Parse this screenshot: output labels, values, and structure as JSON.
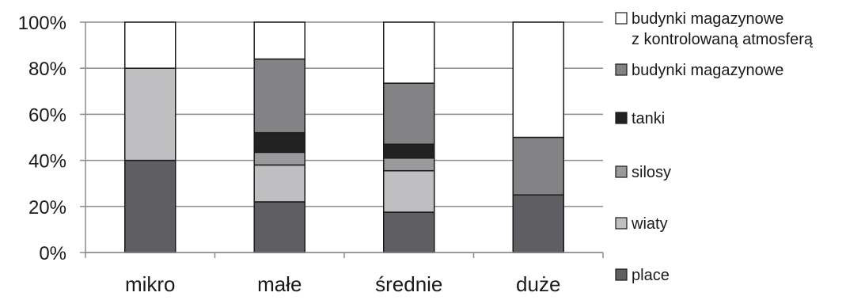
{
  "chart_data": {
    "type": "bar",
    "stacked": true,
    "percent": true,
    "categories": [
      "mikro",
      "małe",
      "średnie",
      "duże"
    ],
    "series": [
      {
        "name": "place",
        "color": "#5f5f63",
        "values": [
          40,
          22,
          17.5,
          25
        ]
      },
      {
        "name": "wiaty",
        "color": "#bfbfc1",
        "values": [
          40,
          16,
          18,
          0
        ]
      },
      {
        "name": "silosy",
        "color": "#9a9a9c",
        "values": [
          0,
          5.5,
          5.5,
          0
        ]
      },
      {
        "name": "tanki",
        "color": "#222222",
        "values": [
          0,
          8.5,
          6,
          0
        ]
      },
      {
        "name": "budynki magazynowe",
        "color": "#838385",
        "values": [
          0,
          32,
          26.5,
          25
        ]
      },
      {
        "name": "budynki magazynowe z kontrolowaną atmosferą",
        "color": "#ffffff",
        "values": [
          20,
          16,
          26.5,
          50
        ]
      }
    ],
    "legend": [
      {
        "lines": [
          "budynki magazynowe",
          "z kontrolowaną atmosferą"
        ],
        "color": "#ffffff"
      },
      {
        "lines": [
          "budynki magazynowe"
        ],
        "color": "#838385"
      },
      {
        "lines": [
          "tanki"
        ],
        "color": "#222222"
      },
      {
        "lines": [
          "silosy"
        ],
        "color": "#9a9a9c"
      },
      {
        "lines": [
          "wiaty"
        ],
        "color": "#bfbfc1"
      },
      {
        "lines": [
          "place"
        ],
        "color": "#5f5f63"
      }
    ],
    "yticks": [
      "0%",
      "20%",
      "40%",
      "60%",
      "80%",
      "100%"
    ],
    "ylim": [
      0,
      100
    ],
    "grid": true,
    "legend_position": "right"
  }
}
